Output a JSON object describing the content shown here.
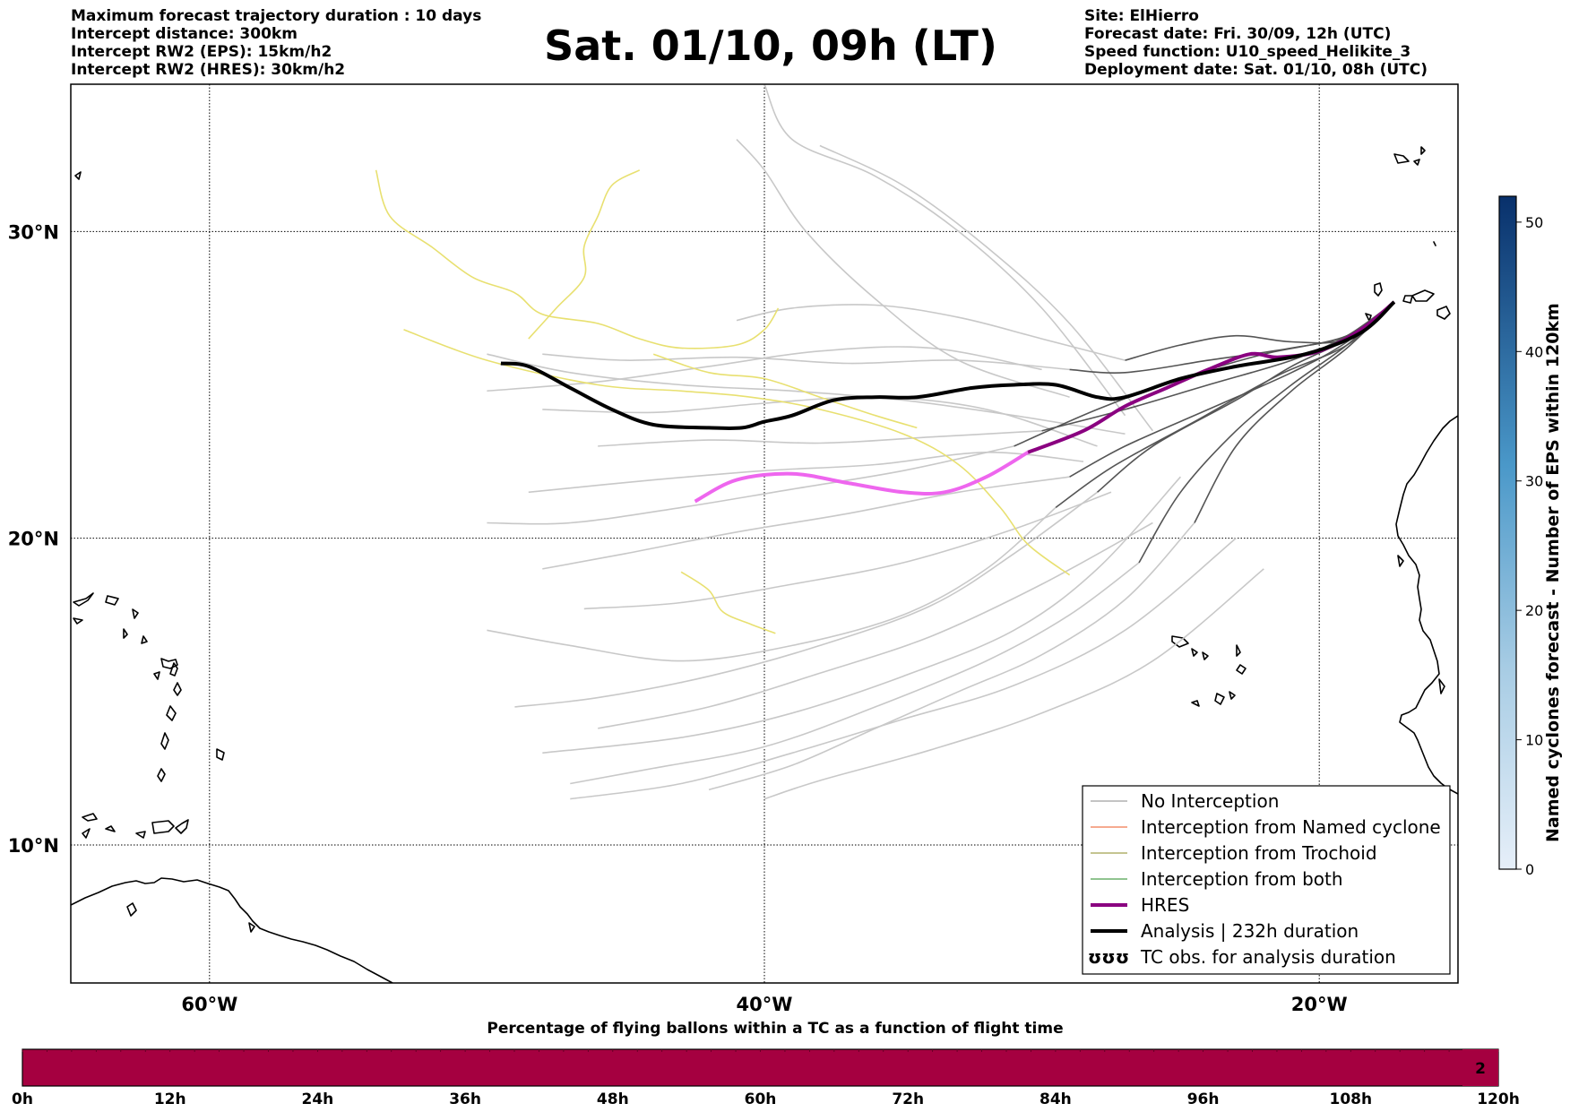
{
  "header": {
    "left_lines": [
      "Maximum forecast trajectory duration : 10 days",
      "Intercept distance: 300km",
      "Intercept RW2 (EPS):  15km/h2",
      "Intercept RW2 (HRES): 30km/h2"
    ],
    "title": "Sat. 01/10, 09h (LT)",
    "right_lines": [
      "Site: ElHierro",
      "Forecast date: Fri. 30/09, 12h (UTC)",
      "Speed function: U10_speed_Helikite_3",
      "Deployment date: Sat. 01/10, 08h (UTC)"
    ]
  },
  "map": {
    "lon_range": [
      -65,
      -15
    ],
    "lat_range": [
      5.5,
      34.8
    ],
    "lon_ticks": [
      {
        "value": -60,
        "label": "60°W"
      },
      {
        "value": -40,
        "label": "40°W"
      },
      {
        "value": -20,
        "label": "20°W"
      }
    ],
    "lat_ticks": [
      {
        "value": 30,
        "label": "30°N"
      },
      {
        "value": 20,
        "label": "20°N"
      },
      {
        "value": 10,
        "label": "10°N"
      }
    ],
    "grid": "dotted",
    "colors": {
      "no_interception": "#555555",
      "eps_tracks": "#c8c8c8",
      "tc_obs": "#e8e070",
      "hres": "#8a0080",
      "hres_extended": "#ee66ee",
      "analysis": "#000000",
      "coast": "#000000"
    },
    "hres_track": [
      [
        -17.3,
        27.7
      ],
      [
        -18.5,
        26.8
      ],
      [
        -20,
        26.1
      ],
      [
        -21.5,
        25.9
      ],
      [
        -22.5,
        26
      ],
      [
        -24,
        25.5
      ],
      [
        -25.5,
        24.9
      ],
      [
        -27,
        24.3
      ],
      [
        -28.5,
        23.5
      ],
      [
        -30.5,
        22.8
      ]
    ],
    "hres_extended_track": [
      [
        -30.5,
        22.8
      ],
      [
        -32,
        22
      ],
      [
        -33.5,
        21.5
      ],
      [
        -35,
        21.5
      ],
      [
        -37,
        21.8
      ],
      [
        -39,
        22.1
      ],
      [
        -41,
        21.9
      ],
      [
        -42.5,
        21.2
      ]
    ],
    "analysis_track": [
      [
        -17.3,
        27.7
      ],
      [
        -18.5,
        26.7
      ],
      [
        -20.5,
        26
      ],
      [
        -23,
        25.6
      ],
      [
        -25,
        25.2
      ],
      [
        -27,
        24.6
      ],
      [
        -28,
        24.6
      ],
      [
        -29.5,
        25
      ],
      [
        -31,
        25
      ],
      [
        -32.5,
        24.9
      ],
      [
        -34.5,
        24.6
      ],
      [
        -36,
        24.6
      ],
      [
        -37.5,
        24.5
      ],
      [
        -39,
        24
      ],
      [
        -40,
        23.8
      ],
      [
        -40.8,
        23.6
      ],
      [
        -42,
        23.6
      ],
      [
        -44,
        23.7
      ],
      [
        -45.5,
        24.2
      ],
      [
        -47,
        24.9
      ],
      [
        -48.5,
        25.6
      ],
      [
        -49.5,
        25.7
      ]
    ],
    "no_interception_tracks": [
      [
        [
          -17.3,
          27.7
        ],
        [
          -19,
          26.6
        ],
        [
          -21,
          26.2
        ],
        [
          -24,
          25.8
        ],
        [
          -27,
          25.4
        ],
        [
          -29,
          25.5
        ]
      ],
      [
        [
          -17.3,
          27.7
        ],
        [
          -19,
          26.6
        ],
        [
          -21,
          25.8
        ],
        [
          -24,
          25
        ],
        [
          -27,
          24.2
        ],
        [
          -30,
          23.5
        ]
      ],
      [
        [
          -17.3,
          27.7
        ],
        [
          -19,
          26.4
        ],
        [
          -21,
          25.4
        ],
        [
          -24,
          24.2
        ],
        [
          -27,
          23
        ],
        [
          -29,
          22
        ]
      ],
      [
        [
          -17.3,
          27.7
        ],
        [
          -19,
          26.3
        ],
        [
          -21,
          25
        ],
        [
          -23,
          23.5
        ],
        [
          -25,
          21.5
        ],
        [
          -26.5,
          19.2
        ]
      ],
      [
        [
          -17.3,
          27.7
        ],
        [
          -19,
          26.5
        ],
        [
          -21,
          25.6
        ],
        [
          -23,
          24.5
        ],
        [
          -26,
          23
        ],
        [
          -28,
          21.5
        ]
      ],
      [
        [
          -17.3,
          27.7
        ],
        [
          -19,
          26.5
        ],
        [
          -21,
          26.4
        ],
        [
          -23,
          26.6
        ],
        [
          -25,
          26.3
        ],
        [
          -27,
          25.8
        ]
      ],
      [
        [
          -17.3,
          27.7
        ],
        [
          -19,
          26.2
        ],
        [
          -21,
          24.8
        ],
        [
          -23,
          23
        ],
        [
          -24.5,
          20.5
        ]
      ],
      [
        [
          -17.3,
          27.7
        ],
        [
          -19,
          26.6
        ],
        [
          -22,
          26
        ],
        [
          -25,
          25.2
        ],
        [
          -28,
          24.2
        ],
        [
          -31,
          23
        ]
      ],
      [
        [
          -17.3,
          27.7
        ],
        [
          -19,
          26.3
        ],
        [
          -21.5,
          25.3
        ],
        [
          -24.5,
          23.8
        ],
        [
          -27.5,
          22.3
        ],
        [
          -29.5,
          21
        ]
      ]
    ],
    "eps_tracks": [
      [
        [
          -29,
          25.5
        ],
        [
          -33,
          25.8
        ],
        [
          -37,
          25.7
        ],
        [
          -41,
          25.9
        ],
        [
          -45,
          25.8
        ],
        [
          -48,
          26
        ]
      ],
      [
        [
          -30,
          23.5
        ],
        [
          -34,
          23.3
        ],
        [
          -38,
          23.1
        ],
        [
          -42,
          23.2
        ],
        [
          -46,
          23
        ]
      ],
      [
        [
          -29,
          22
        ],
        [
          -33,
          21.5
        ],
        [
          -37,
          20.8
        ],
        [
          -41,
          20.2
        ],
        [
          -45,
          19.5
        ],
        [
          -48,
          19
        ]
      ],
      [
        [
          -26.5,
          19.2
        ],
        [
          -29,
          17.5
        ],
        [
          -32,
          16
        ],
        [
          -36,
          14.5
        ],
        [
          -40,
          13.2
        ],
        [
          -44,
          12.5
        ],
        [
          -47,
          12
        ]
      ],
      [
        [
          -28,
          21.5
        ],
        [
          -31,
          19.5
        ],
        [
          -34,
          17.8
        ],
        [
          -38,
          16.5
        ],
        [
          -42,
          15.5
        ],
        [
          -46,
          14.8
        ],
        [
          -49,
          14.5
        ]
      ],
      [
        [
          -27,
          25.8
        ],
        [
          -30,
          26.5
        ],
        [
          -33,
          27.2
        ],
        [
          -36,
          27.6
        ],
        [
          -39,
          27.5
        ],
        [
          -41,
          27.1
        ]
      ],
      [
        [
          -24.5,
          20.5
        ],
        [
          -27,
          18
        ],
        [
          -30,
          16.2
        ],
        [
          -33,
          15
        ],
        [
          -36,
          13.8
        ],
        [
          -39,
          12.6
        ],
        [
          -42,
          11.8
        ]
      ],
      [
        [
          -31,
          23
        ],
        [
          -35,
          22.2
        ],
        [
          -39,
          21.6
        ],
        [
          -43,
          21
        ],
        [
          -47,
          20.5
        ],
        [
          -50,
          20.5
        ]
      ],
      [
        [
          -29.5,
          21
        ],
        [
          -32,
          19
        ],
        [
          -35,
          17.5
        ],
        [
          -39,
          16.5
        ],
        [
          -43,
          16
        ],
        [
          -47,
          16.5
        ],
        [
          -50,
          17
        ]
      ],
      [
        [
          -27,
          24
        ],
        [
          -30,
          27.5
        ],
        [
          -33,
          30
        ],
        [
          -36,
          31.8
        ],
        [
          -39,
          33
        ],
        [
          -40,
          34.8
        ]
      ],
      [
        [
          -26,
          23.5
        ],
        [
          -29,
          27
        ],
        [
          -32,
          29.5
        ],
        [
          -35,
          31.5
        ],
        [
          -38,
          32.8
        ]
      ],
      [
        [
          -25,
          22
        ],
        [
          -28,
          19
        ],
        [
          -31,
          17
        ],
        [
          -35,
          15.5
        ],
        [
          -39,
          14.3
        ],
        [
          -43,
          13.5
        ],
        [
          -48,
          13
        ]
      ],
      [
        [
          -23,
          20
        ],
        [
          -27,
          17
        ],
        [
          -31,
          15.2
        ],
        [
          -35,
          14.1
        ],
        [
          -39,
          13
        ],
        [
          -43,
          12
        ],
        [
          -47,
          11.5
        ]
      ],
      [
        [
          -22,
          19
        ],
        [
          -26,
          16
        ],
        [
          -30,
          14.3
        ],
        [
          -34,
          13.1
        ],
        [
          -38,
          12.1
        ],
        [
          -40,
          11.5
        ]
      ],
      [
        [
          -28,
          23
        ],
        [
          -32,
          24.2
        ],
        [
          -36,
          24.6
        ],
        [
          -40,
          24.4
        ],
        [
          -44,
          24.1
        ],
        [
          -48,
          24.2
        ]
      ],
      [
        [
          -28.5,
          22.5
        ],
        [
          -32,
          22.8
        ],
        [
          -36,
          22.4
        ],
        [
          -40,
          22.2
        ],
        [
          -44,
          21.9
        ],
        [
          -48.5,
          21.5
        ]
      ],
      [
        [
          -27.5,
          21.5
        ],
        [
          -31,
          20.3
        ],
        [
          -35,
          19.2
        ],
        [
          -39,
          18.5
        ],
        [
          -43,
          17.9
        ],
        [
          -46.5,
          17.7
        ]
      ],
      [
        [
          -26,
          20.5
        ],
        [
          -30,
          18.5
        ],
        [
          -34,
          16.8
        ],
        [
          -38,
          15.6
        ],
        [
          -42,
          14.5
        ],
        [
          -46,
          13.8
        ]
      ],
      [
        [
          -30,
          25.5
        ],
        [
          -34,
          26.2
        ],
        [
          -38,
          26.1
        ],
        [
          -42,
          25.6
        ],
        [
          -46,
          25.1
        ],
        [
          -50,
          24.8
        ]
      ],
      [
        [
          -29,
          24.6
        ],
        [
          -33,
          25.8
        ],
        [
          -36,
          27.8
        ],
        [
          -38.5,
          30
        ],
        [
          -40,
          32
        ],
        [
          -41,
          33
        ]
      ],
      [
        [
          -27,
          23.4
        ],
        [
          -31,
          24
        ],
        [
          -35,
          24.5
        ],
        [
          -39,
          24.8
        ],
        [
          -43,
          25
        ],
        [
          -47,
          25.4
        ],
        [
          -50,
          26
        ]
      ]
    ],
    "tc_obs_tracks": [
      [
        [
          -54,
          32
        ],
        [
          -53.5,
          30.5
        ],
        [
          -52,
          29.5
        ],
        [
          -50.5,
          28.5
        ],
        [
          -49,
          28
        ],
        [
          -48,
          27.3
        ],
        [
          -46,
          27
        ],
        [
          -44.5,
          26.5
        ],
        [
          -43,
          26.2
        ],
        [
          -41,
          26.3
        ],
        [
          -40,
          26.8
        ],
        [
          -39.5,
          27.5
        ]
      ],
      [
        [
          -48.5,
          26.5
        ],
        [
          -47.5,
          27.5
        ],
        [
          -46.5,
          28.5
        ],
        [
          -46.5,
          29.5
        ],
        [
          -46,
          30.5
        ],
        [
          -45.5,
          31.5
        ],
        [
          -44.5,
          32
        ]
      ],
      [
        [
          -53,
          26.8
        ],
        [
          -50,
          25.8
        ],
        [
          -46,
          25
        ],
        [
          -43,
          24.8
        ],
        [
          -40.5,
          24.6
        ],
        [
          -38,
          24.2
        ],
        [
          -35,
          23.4
        ],
        [
          -33,
          22.4
        ],
        [
          -31.5,
          21
        ],
        [
          -30.5,
          19.8
        ],
        [
          -29,
          18.8
        ]
      ],
      [
        [
          -43,
          18.9
        ],
        [
          -42,
          18.3
        ],
        [
          -41.5,
          17.6
        ],
        [
          -40.5,
          17.2
        ],
        [
          -39.6,
          16.9
        ]
      ],
      [
        [
          -44,
          26
        ],
        [
          -42,
          25.4
        ],
        [
          -40,
          25.2
        ],
        [
          -38,
          24.6
        ],
        [
          -36,
          24
        ],
        [
          -34.5,
          23.6
        ]
      ]
    ]
  },
  "legend": {
    "entries": [
      {
        "label": "No Interception",
        "color": "#888888",
        "width": 1
      },
      {
        "label": "Interception from Named cyclone",
        "color": "#ee5522",
        "width": 1
      },
      {
        "label": "Interception from Trochoid",
        "color": "#888822",
        "width": 1
      },
      {
        "label": "Interception from both",
        "color": "#228822",
        "width": 1
      },
      {
        "label": "HRES",
        "color": "#8a0080",
        "width": 4
      },
      {
        "label": "Analysis | 232h duration",
        "color": "#000000",
        "width": 4
      },
      {
        "label": "TC obs. for analysis duration",
        "color": "#000000",
        "width": 0,
        "marker": "ʊʊʊ"
      }
    ]
  },
  "colorbar": {
    "title": "Named cyclones forecast - Number of EPS within 120km",
    "range": [
      0,
      52
    ],
    "ticks": [
      0,
      10,
      20,
      30,
      40,
      50
    ],
    "color_low": "#e4eef9",
    "color_high": "#0a3a78"
  },
  "bottom_bar": {
    "title": "Percentage of flying ballons within a TC as a function of flight time",
    "color": "#a50040",
    "ticks": [
      "0h",
      "12h",
      "24h",
      "36h",
      "48h",
      "60h",
      "72h",
      "84h",
      "96h",
      "108h",
      "120h"
    ],
    "last_value": "2"
  }
}
